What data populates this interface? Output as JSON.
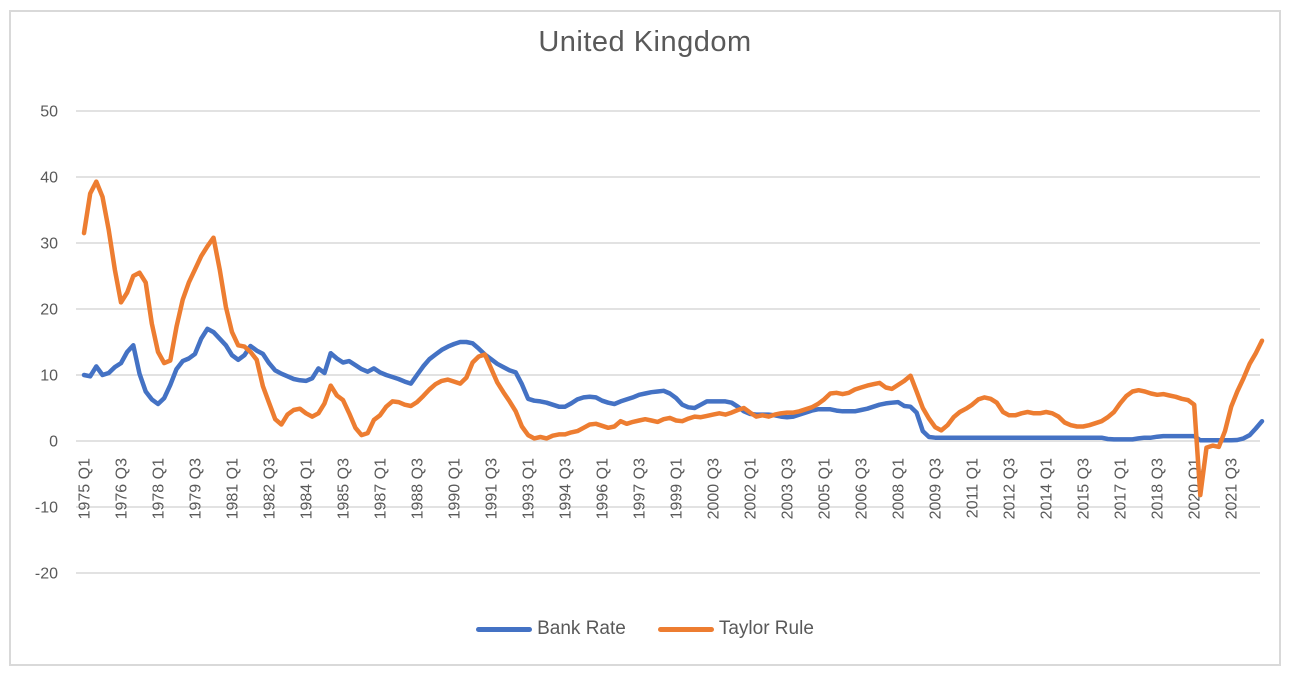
{
  "window": {
    "background": "#ffffff",
    "border_color": "#d9d9d9"
  },
  "chart_data": {
    "type": "line",
    "title": "United Kingdom",
    "xlabel": "",
    "ylabel": "",
    "grid": true,
    "legend_position": "bottom",
    "ylim": [
      -20,
      50
    ],
    "y_ticks": [
      50,
      40,
      30,
      20,
      10,
      0,
      -10,
      -20
    ],
    "x_start": "1975 Q1",
    "x_end": "2022 Q4",
    "x_frequency": "quarterly",
    "x_tick_every_n_points": 6,
    "x_tick_labels": [
      "1975 Q1",
      "1976 Q3",
      "1978 Q1",
      "1979 Q3",
      "1981 Q1",
      "1982 Q3",
      "1984 Q1",
      "1985 Q3",
      "1987 Q1",
      "1988 Q3",
      "1990 Q1",
      "1991 Q3",
      "1993 Q1",
      "1994 Q3",
      "1996 Q1",
      "1997 Q3",
      "1999 Q1",
      "2000 Q3",
      "2002 Q1",
      "2003 Q3",
      "2005 Q1",
      "2006 Q3",
      "2008 Q1",
      "2009 Q3",
      "2011 Q1",
      "2012 Q3",
      "2014 Q1",
      "2015 Q3",
      "2017 Q1",
      "2018 Q3",
      "2020 Q1",
      "2021 Q3"
    ],
    "series": [
      {
        "name": "Bank Rate",
        "color": "#4472C4",
        "values": [
          10.0,
          9.8,
          11.3,
          10.0,
          10.3,
          11.2,
          11.8,
          13.5,
          14.5,
          10.2,
          7.5,
          6.3,
          5.6,
          6.5,
          8.5,
          10.9,
          12.1,
          12.5,
          13.2,
          15.5,
          17.0,
          16.5,
          15.5,
          14.5,
          13.0,
          12.3,
          13.0,
          14.4,
          13.7,
          13.2,
          11.8,
          10.7,
          10.2,
          9.8,
          9.4,
          9.2,
          9.1,
          9.5,
          11.0,
          10.3,
          13.3,
          12.5,
          11.9,
          12.1,
          11.5,
          10.9,
          10.5,
          11.0,
          10.4,
          10.0,
          9.7,
          9.4,
          9.0,
          8.7,
          10.0,
          11.3,
          12.4,
          13.1,
          13.8,
          14.3,
          14.7,
          15.0,
          15.0,
          14.8,
          14.0,
          13.1,
          12.4,
          11.7,
          11.2,
          10.7,
          10.4,
          8.6,
          6.4,
          6.1,
          6.0,
          5.8,
          5.5,
          5.2,
          5.2,
          5.7,
          6.3,
          6.6,
          6.7,
          6.6,
          6.1,
          5.8,
          5.6,
          6.0,
          6.3,
          6.6,
          7.0,
          7.2,
          7.4,
          7.5,
          7.6,
          7.2,
          6.5,
          5.5,
          5.1,
          5.0,
          5.5,
          6.0,
          6.0,
          6.0,
          6.0,
          5.8,
          5.2,
          4.5,
          4.1,
          4.0,
          4.0,
          4.0,
          3.9,
          3.7,
          3.6,
          3.7,
          4.0,
          4.3,
          4.6,
          4.8,
          4.8,
          4.8,
          4.6,
          4.5,
          4.5,
          4.5,
          4.7,
          4.9,
          5.2,
          5.5,
          5.7,
          5.8,
          5.9,
          5.3,
          5.2,
          4.3,
          1.5,
          0.6,
          0.5,
          0.5,
          0.5,
          0.5,
          0.5,
          0.5,
          0.5,
          0.5,
          0.5,
          0.5,
          0.5,
          0.5,
          0.5,
          0.5,
          0.5,
          0.5,
          0.5,
          0.5,
          0.5,
          0.5,
          0.5,
          0.5,
          0.5,
          0.5,
          0.5,
          0.5,
          0.5,
          0.5,
          0.3,
          0.25,
          0.25,
          0.25,
          0.25,
          0.4,
          0.5,
          0.5,
          0.65,
          0.75,
          0.75,
          0.75,
          0.75,
          0.75,
          0.75,
          0.1,
          0.1,
          0.1,
          0.1,
          0.1,
          0.1,
          0.15,
          0.4,
          0.9,
          1.9,
          3.0
        ]
      },
      {
        "name": "Taylor Rule",
        "color": "#ED7D31",
        "values": [
          31.5,
          37.5,
          39.3,
          37.0,
          32.0,
          26.0,
          21.0,
          22.5,
          25.0,
          25.5,
          24.0,
          17.8,
          13.5,
          11.8,
          12.2,
          17.3,
          21.4,
          24.0,
          26.0,
          28.0,
          29.5,
          30.8,
          26.0,
          20.3,
          16.5,
          14.5,
          14.3,
          13.5,
          12.3,
          8.3,
          5.8,
          3.3,
          2.5,
          4.0,
          4.7,
          4.9,
          4.2,
          3.7,
          4.2,
          5.7,
          8.4,
          6.9,
          6.2,
          4.2,
          2.0,
          0.9,
          1.2,
          3.2,
          3.9,
          5.2,
          6.0,
          5.9,
          5.5,
          5.3,
          5.9,
          6.8,
          7.8,
          8.6,
          9.1,
          9.3,
          9.0,
          8.7,
          9.6,
          11.9,
          12.8,
          13.1,
          11.0,
          8.9,
          7.4,
          6.0,
          4.5,
          2.2,
          0.9,
          0.4,
          0.6,
          0.4,
          0.8,
          1.0,
          1.0,
          1.3,
          1.5,
          2.0,
          2.5,
          2.6,
          2.3,
          2.0,
          2.2,
          3.0,
          2.6,
          2.9,
          3.1,
          3.3,
          3.1,
          2.9,
          3.3,
          3.5,
          3.1,
          3.0,
          3.4,
          3.7,
          3.6,
          3.8,
          4.0,
          4.2,
          4.0,
          4.3,
          4.7,
          5.0,
          4.3,
          3.7,
          3.9,
          3.7,
          4.0,
          4.2,
          4.3,
          4.3,
          4.5,
          4.8,
          5.1,
          5.6,
          6.3,
          7.2,
          7.3,
          7.1,
          7.3,
          7.8,
          8.1,
          8.4,
          8.6,
          8.8,
          8.1,
          7.9,
          8.5,
          9.1,
          9.9,
          7.5,
          5.0,
          3.4,
          2.1,
          1.6,
          2.4,
          3.6,
          4.4,
          4.9,
          5.5,
          6.3,
          6.6,
          6.4,
          5.8,
          4.4,
          3.9,
          3.9,
          4.2,
          4.4,
          4.2,
          4.2,
          4.4,
          4.2,
          3.7,
          2.8,
          2.4,
          2.2,
          2.2,
          2.4,
          2.7,
          3.0,
          3.6,
          4.4,
          5.7,
          6.8,
          7.5,
          7.7,
          7.5,
          7.2,
          7.0,
          7.1,
          6.9,
          6.7,
          6.4,
          6.2,
          5.5,
          -8.2,
          -1.0,
          -0.7,
          -0.9,
          1.5,
          5.2,
          7.5,
          9.5,
          11.7,
          13.3,
          15.2
        ]
      }
    ]
  },
  "legend": {
    "items": [
      {
        "label": "Bank Rate",
        "color": "#4472C4"
      },
      {
        "label": "Taylor Rule",
        "color": "#ED7D31"
      }
    ]
  }
}
